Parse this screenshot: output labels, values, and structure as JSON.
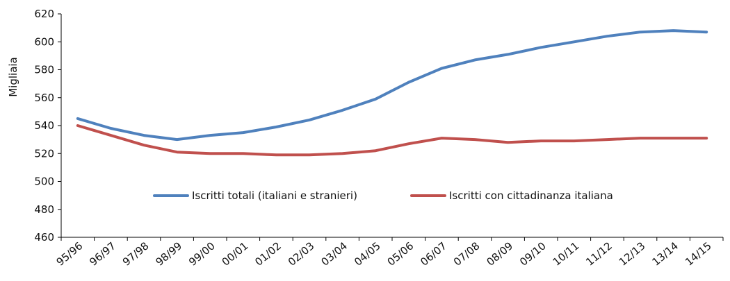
{
  "chart_data": {
    "type": "line",
    "title": "",
    "xlabel": "",
    "ylabel": "Migliaia",
    "ylim": [
      460,
      620
    ],
    "yticks": [
      460,
      480,
      500,
      520,
      540,
      560,
      580,
      600,
      620
    ],
    "grid": false,
    "legend_position": "center",
    "categories": [
      "95/96",
      "96/97",
      "97/98",
      "98/99",
      "99/00",
      "00/01",
      "01/02",
      "02/03",
      "03/04",
      "04/05",
      "05/06",
      "06/07",
      "07/08",
      "08/09",
      "09/10",
      "10/11",
      "11/12",
      "12/13",
      "13/14",
      "14/15"
    ],
    "series": [
      {
        "name": "Iscritti totali (italiani e stranieri)",
        "color": "#4F81BD",
        "values": [
          545,
          538,
          533,
          530,
          533,
          535,
          539,
          544,
          551,
          559,
          571,
          581,
          587,
          591,
          596,
          600,
          604,
          607,
          608,
          607
        ]
      },
      {
        "name": "Iscritti con cittadinanza italiana",
        "color": "#C0504D",
        "values": [
          540,
          533,
          526,
          521,
          520,
          520,
          519,
          519,
          520,
          522,
          527,
          531,
          530,
          528,
          529,
          529,
          530,
          531,
          531,
          531
        ]
      }
    ]
  }
}
